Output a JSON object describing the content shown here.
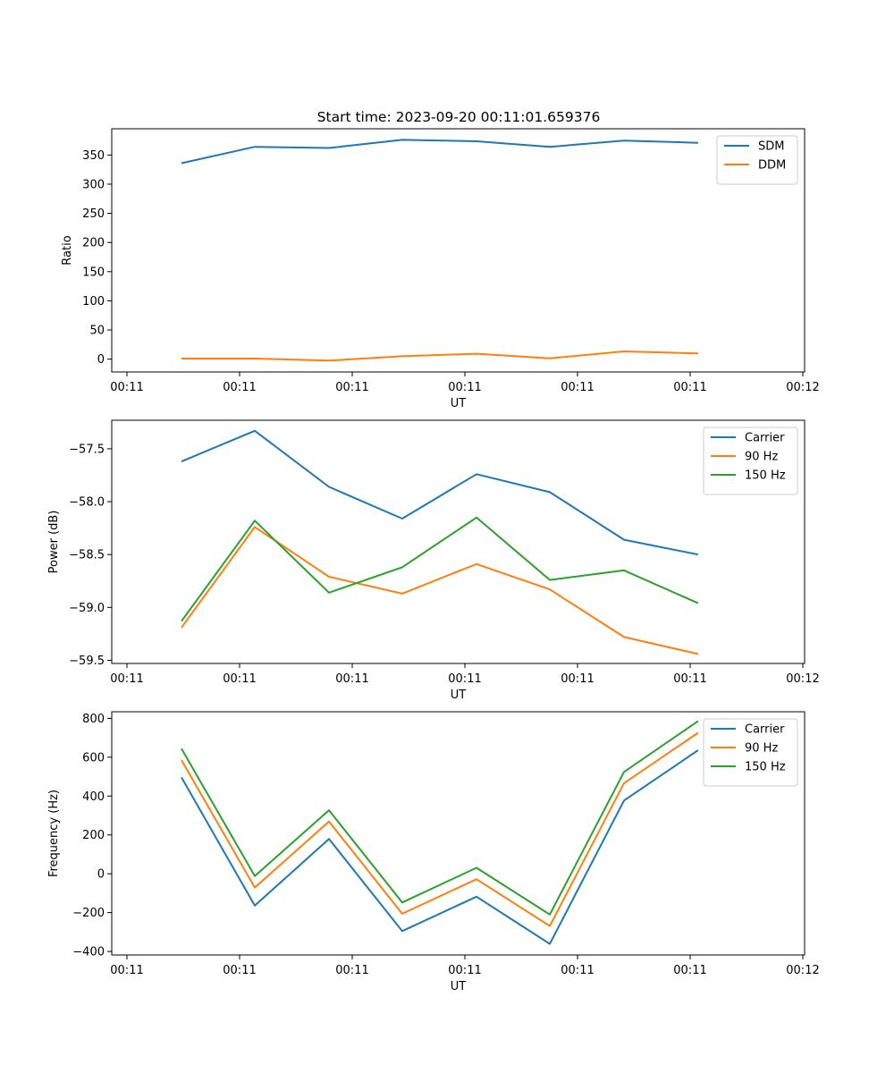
{
  "figure": {
    "title": "Start time: 2023-09-20 00:11:01.659376"
  },
  "chart_data": [
    {
      "type": "line",
      "title": "Start time: 2023-09-20 00:11:01.659376",
      "xlabel": "UT",
      "ylabel": "Ratio",
      "x_tick_labels": [
        "00:11",
        "00:11",
        "00:11",
        "00:11",
        "00:11",
        "00:11",
        "00:12"
      ],
      "x_tick_values": [
        0,
        1,
        2,
        3,
        4,
        5,
        6
      ],
      "xlim": [
        -0.0,
        6.0
      ],
      "x": [
        0.484,
        1.135,
        1.794,
        2.444,
        3.103,
        3.754,
        4.413,
        5.071
      ],
      "y_ticks": [
        0,
        50,
        100,
        150,
        200,
        250,
        300,
        350
      ],
      "ylim": [
        -22,
        395
      ],
      "grid": false,
      "legend_position": "top-right",
      "series": [
        {
          "name": "SDM",
          "color": "#1f77b4",
          "values": [
            336,
            364,
            362,
            376,
            373.5,
            364,
            374.6,
            371
          ]
        },
        {
          "name": "DDM",
          "color": "#ff7f0e",
          "values": [
            1,
            1,
            -2.5,
            5,
            9.2,
            1.5,
            13.3,
            9.7
          ]
        }
      ]
    },
    {
      "type": "line",
      "title": "",
      "xlabel": "UT",
      "ylabel": "Power (dB)",
      "x_tick_labels": [
        "00:11",
        "00:11",
        "00:11",
        "00:11",
        "00:11",
        "00:11",
        "00:12"
      ],
      "x_tick_values": [
        0,
        1,
        2,
        3,
        4,
        5,
        6
      ],
      "xlim": [
        -0.0,
        6.0
      ],
      "x": [
        0.484,
        1.135,
        1.794,
        2.444,
        3.103,
        3.754,
        4.413,
        5.071
      ],
      "y_ticks": [
        -59.5,
        -59.0,
        -58.5,
        -58.0,
        -57.5
      ],
      "y_tick_labels": [
        "−59.5",
        "−59.0",
        "−58.5",
        "−58.0",
        "−57.5"
      ],
      "ylim": [
        -59.53,
        -57.23
      ],
      "grid": false,
      "legend_position": "top-right",
      "series": [
        {
          "name": "Carrier",
          "color": "#1f77b4",
          "values": [
            -57.62,
            -57.33,
            -57.86,
            -58.16,
            -57.74,
            -57.91,
            -58.36,
            -58.5
          ]
        },
        {
          "name": "90 Hz",
          "color": "#ff7f0e",
          "values": [
            -59.19,
            -58.24,
            -58.71,
            -58.87,
            -58.59,
            -58.83,
            -59.28,
            -59.44
          ]
        },
        {
          "name": "150 Hz",
          "color": "#2ca02c",
          "values": [
            -59.13,
            -58.18,
            -58.86,
            -58.62,
            -58.15,
            -58.74,
            -58.65,
            -58.96
          ]
        }
      ]
    },
    {
      "type": "line",
      "title": "",
      "xlabel": "UT",
      "ylabel": "Frequency (Hz)",
      "x_tick_labels": [
        "00:11",
        "00:11",
        "00:11",
        "00:11",
        "00:11",
        "00:11",
        "00:12"
      ],
      "x_tick_values": [
        0,
        1,
        2,
        3,
        4,
        5,
        6
      ],
      "xlim": [
        -0.0,
        6.0
      ],
      "x": [
        0.484,
        1.135,
        1.794,
        2.444,
        3.103,
        3.754,
        4.413,
        5.071
      ],
      "y_ticks": [
        -400,
        -200,
        0,
        200,
        400,
        600,
        800
      ],
      "y_tick_labels": [
        "−400",
        "−200",
        "0",
        "200",
        "400",
        "600",
        "800"
      ],
      "ylim": [
        -418,
        834
      ],
      "grid": false,
      "legend_position": "top-right",
      "series": [
        {
          "name": "Carrier",
          "color": "#1f77b4",
          "values": [
            496,
            -164,
            179,
            -295,
            -118,
            -361,
            377,
            636
          ]
        },
        {
          "name": "90 Hz",
          "color": "#ff7f0e",
          "values": [
            585,
            -71,
            269,
            -206,
            -28,
            -269,
            466,
            726
          ]
        },
        {
          "name": "150 Hz",
          "color": "#2ca02c",
          "values": [
            644,
            -12,
            327,
            -148,
            31,
            -210,
            524,
            786
          ]
        }
      ]
    }
  ]
}
